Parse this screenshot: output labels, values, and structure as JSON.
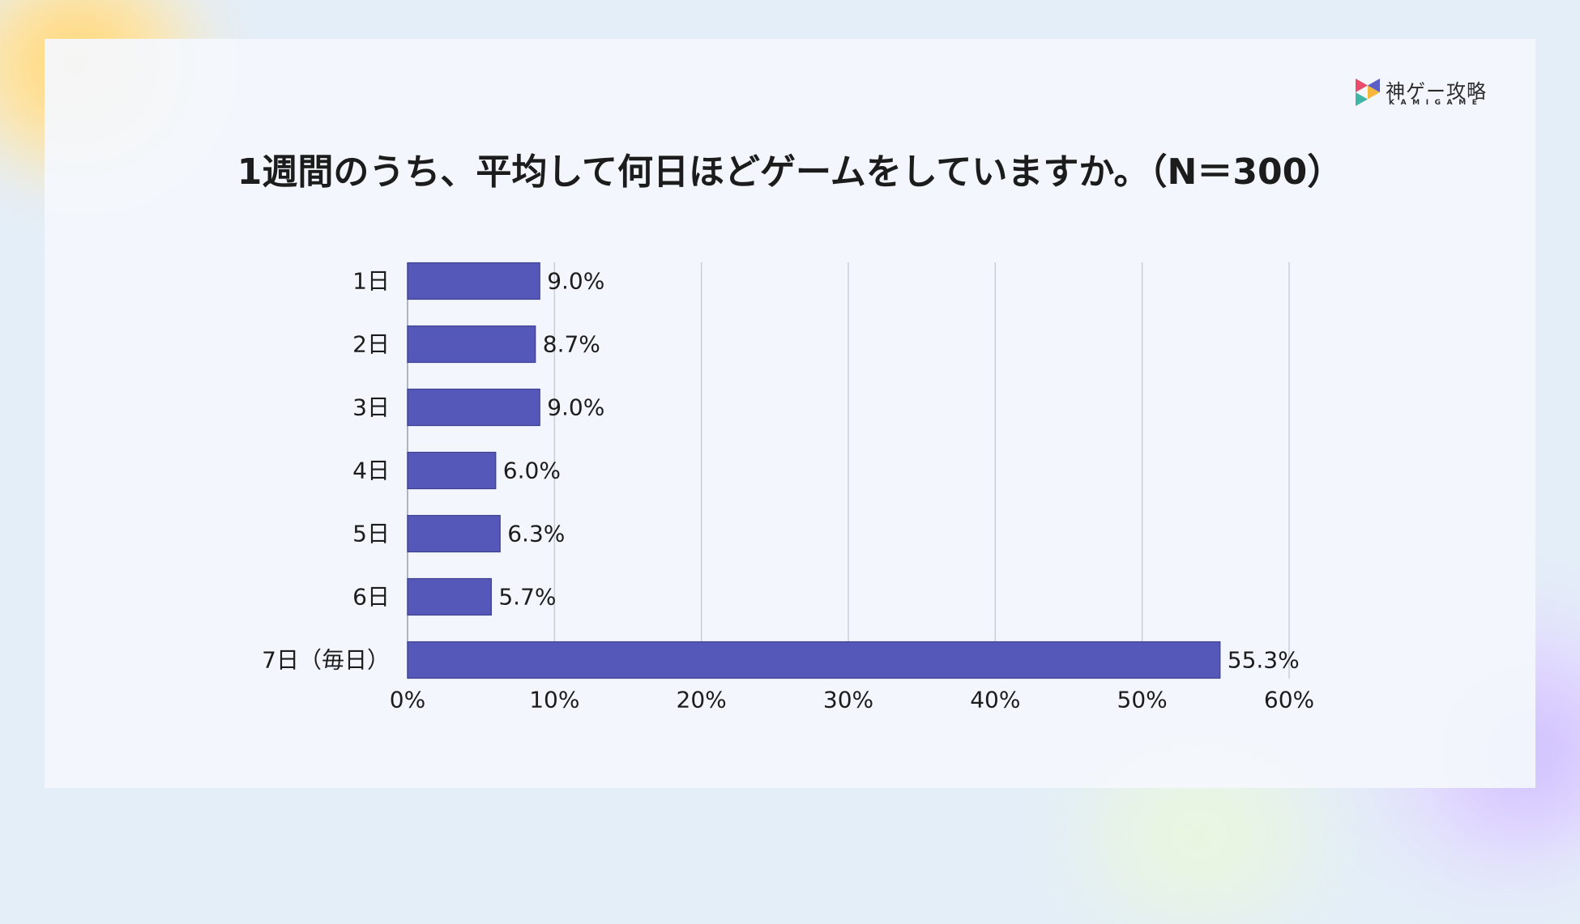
{
  "logo": {
    "title": "神ゲー攻略",
    "subtitle": "KAMIGAME",
    "colors": [
      "#e94b6b",
      "#f6b73c",
      "#3fb6a8",
      "#5b5fc7"
    ]
  },
  "chart_data": {
    "type": "bar",
    "orientation": "horizontal",
    "title": "1週間のうち、平均して何日ほどゲームをしていますか。（N＝300）",
    "categories": [
      "1日",
      "2日",
      "3日",
      "4日",
      "5日",
      "6日",
      "7日（毎日）"
    ],
    "values": [
      9.0,
      8.7,
      9.0,
      6.0,
      6.3,
      5.7,
      55.3
    ],
    "data_labels": [
      "9.0%",
      "8.7%",
      "9.0%",
      "6.0%",
      "6.3%",
      "5.7%",
      "55.3%"
    ],
    "xlim": [
      0,
      60
    ],
    "xticks": [
      "0%",
      "10%",
      "20%",
      "30%",
      "40%",
      "50%",
      "60%"
    ],
    "xlabel": "",
    "ylabel": "",
    "grid": "vertical",
    "bar_color": "#5558b8",
    "bar_edge_color": "#3d3f8f",
    "grid_color": "#c9ced6"
  }
}
